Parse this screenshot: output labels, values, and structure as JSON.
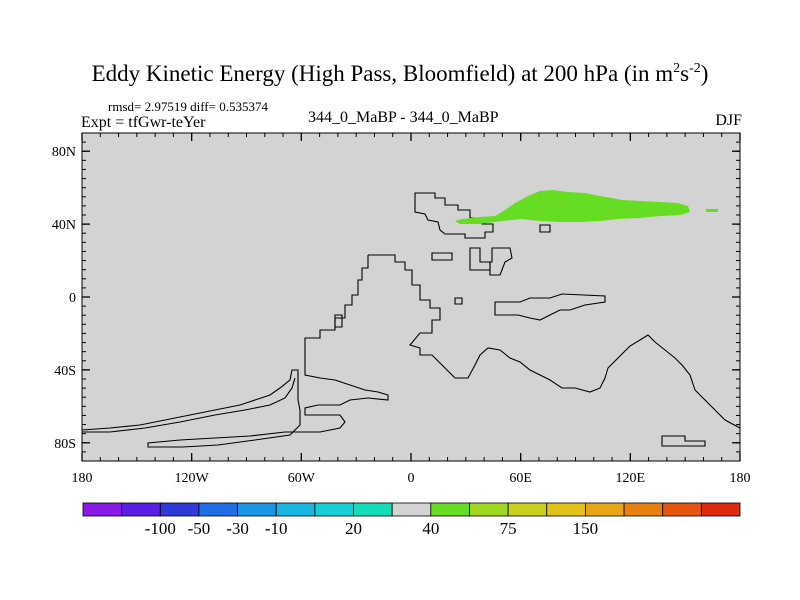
{
  "title": {
    "main": "Eddy Kinetic Energy (High Pass, Bloomfield) at 200 hPa (in m",
    "sup1": "2",
    "mid": "s",
    "sup2": "-2",
    "end": ")"
  },
  "stats_line": "rmsd= 2.97519 diff= 0.535374",
  "expt_line": "Expt = tfGwr-teYer",
  "diff_label": "344_0_MaBP - 344_0_MaBP",
  "season": "DJF",
  "map": {
    "background_color": "#d3d3d3",
    "outline_color": "#000000",
    "feature_color": "#66dd22",
    "lon_range": [
      -180,
      180
    ],
    "lat_range": [
      -90,
      90
    ],
    "lat_ticks": [
      {
        "value": 80,
        "label": "80N"
      },
      {
        "value": 40,
        "label": "40N"
      },
      {
        "value": 0,
        "label": "0"
      },
      {
        "value": -40,
        "label": "40S"
      },
      {
        "value": -80,
        "label": "80S"
      }
    ],
    "lon_ticks": [
      {
        "value": -180,
        "label": "180"
      },
      {
        "value": -120,
        "label": "120W"
      },
      {
        "value": -60,
        "label": "60W"
      },
      {
        "value": 0,
        "label": "0"
      },
      {
        "value": 60,
        "label": "60E"
      },
      {
        "value": 120,
        "label": "120E"
      },
      {
        "value": 180,
        "label": "180"
      }
    ]
  },
  "colorbar": {
    "colors": [
      "#8b1ae8",
      "#5a1ee6",
      "#2f3ad8",
      "#1f6ee6",
      "#1b96e6",
      "#17b6e0",
      "#15ced6",
      "#14dcb8",
      "#d3d3d3",
      "#66dd22",
      "#9fd81f",
      "#c8d01c",
      "#e2c218",
      "#e8a614",
      "#e88010",
      "#e6560e",
      "#dd2a10"
    ],
    "labels": [
      "-100",
      "-50",
      "-30",
      "-10",
      "20",
      "40",
      "75",
      "150"
    ]
  }
}
